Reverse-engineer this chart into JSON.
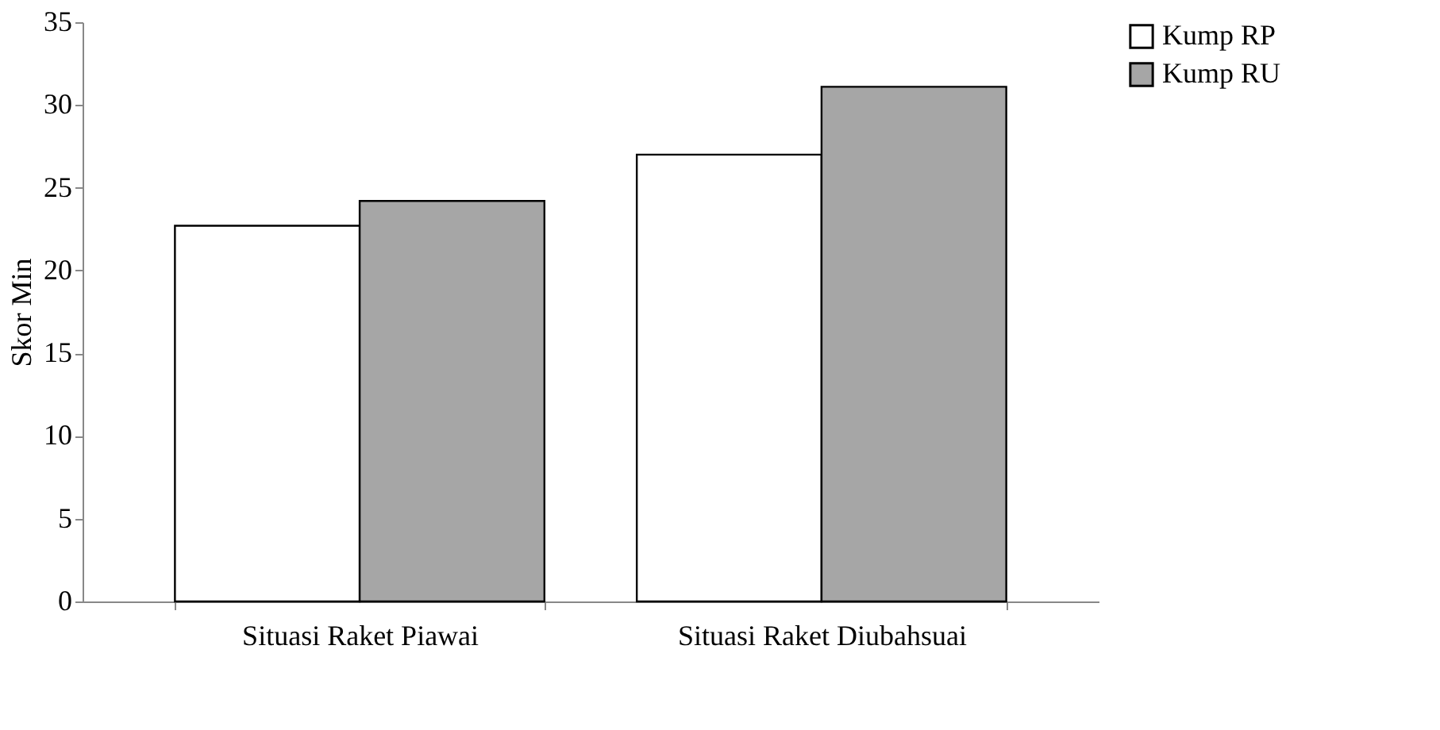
{
  "chart_data": {
    "type": "bar",
    "ylabel": "Skor Min",
    "categories": [
      "Situasi Raket Piawai",
      "Situasi Raket Diubahsuai"
    ],
    "series": [
      {
        "name": "Kump RP",
        "color": "#ffffff",
        "values": [
          22.7,
          27.0
        ]
      },
      {
        "name": "Kump RU",
        "color": "#a6a6a6",
        "values": [
          24.2,
          31.1
        ]
      }
    ],
    "ylim": [
      0,
      35
    ],
    "yticks": [
      0,
      5,
      10,
      15,
      20,
      25,
      30,
      35
    ],
    "grid": false,
    "legend": "right"
  }
}
